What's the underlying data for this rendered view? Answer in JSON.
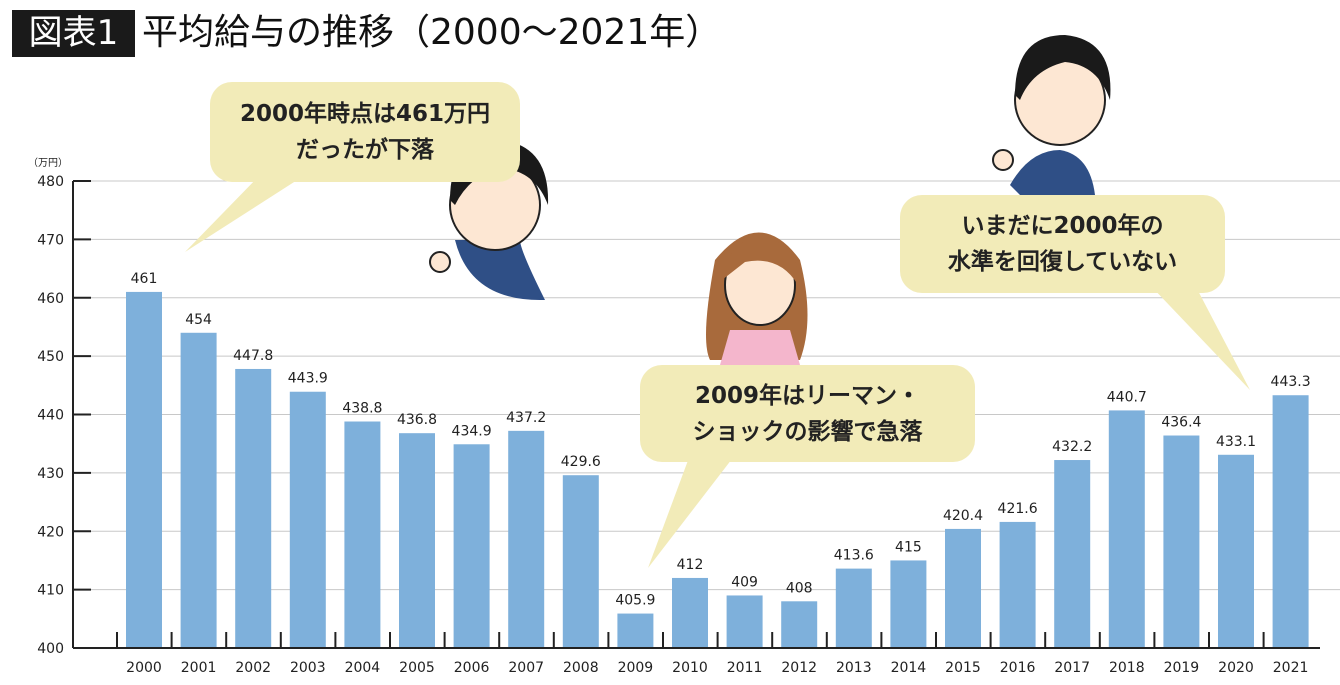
{
  "title": {
    "badge": "図表1",
    "text": "平均給与の推移（2000〜2021年）"
  },
  "chart_data": {
    "type": "bar",
    "title": "平均給与の推移（2000〜2021年）",
    "ylabel": "（万円）",
    "xlabel": "",
    "ylim": [
      400,
      480
    ],
    "yticks": [
      400,
      410,
      420,
      430,
      440,
      450,
      460,
      470,
      480
    ],
    "grid": true,
    "bar_color": "#7eb0db",
    "categories": [
      "2000",
      "2001",
      "2002",
      "2003",
      "2004",
      "2005",
      "2006",
      "2007",
      "2008",
      "2009",
      "2010",
      "2011",
      "2012",
      "2013",
      "2014",
      "2015",
      "2016",
      "2017",
      "2018",
      "2019",
      "2020",
      "2021"
    ],
    "values": [
      461,
      454,
      447.8,
      443.9,
      438.8,
      436.8,
      434.9,
      437.2,
      429.6,
      405.9,
      412,
      409,
      408,
      413.6,
      415,
      420.4,
      421.6,
      432.2,
      440.7,
      436.4,
      433.1,
      443.3
    ],
    "value_labels": [
      "461",
      "454",
      "447.8",
      "443.9",
      "438.8",
      "436.8",
      "434.9",
      "437.2",
      "429.6",
      "405.9",
      "412",
      "409",
      "408",
      "413.6",
      "415",
      "420.4",
      "421.6",
      "432.2",
      "440.7",
      "436.4",
      "433.1",
      "443.3"
    ]
  },
  "annotations": [
    {
      "lines": [
        "2000年時点は461万円",
        "だったが下落"
      ]
    },
    {
      "lines": [
        "2009年はリーマン・",
        "ショックの影響で急落"
      ]
    },
    {
      "lines": [
        "いまだに2000年の",
        "水準を回復していない"
      ]
    }
  ]
}
